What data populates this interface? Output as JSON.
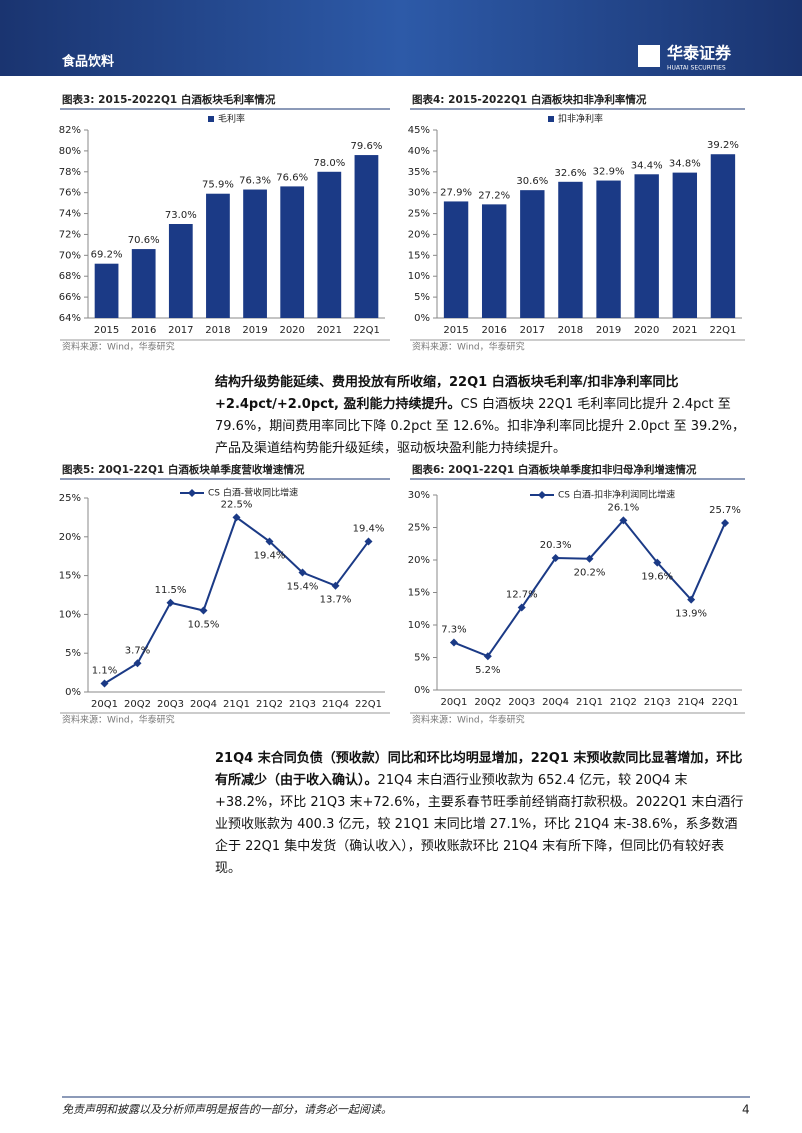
{
  "header": {
    "section": "食品饮料",
    "logo": "华泰证券",
    "logo_sub": "HUATAI SECURITIES"
  },
  "chart_data": [
    {
      "type": "bar",
      "title": "图表3:  2015-2022Q1 白酒板块毛利率情况",
      "categories": [
        "2015",
        "2016",
        "2017",
        "2018",
        "2019",
        "2020",
        "2021",
        "22Q1"
      ],
      "series": [
        {
          "name": "毛利率",
          "color": "#1b3a86",
          "values": [
            69.2,
            70.6,
            73.0,
            75.9,
            76.3,
            76.6,
            78.0,
            79.6
          ],
          "value_labels": [
            "69.2%",
            "70.6%",
            "73.0%",
            "75.9%",
            "76.3%",
            "76.6%",
            "78.0%",
            "79.6%"
          ]
        }
      ],
      "ylim": [
        64,
        82
      ],
      "yticks": [
        {
          "value": 64,
          "label": "64%"
        },
        {
          "value": 66,
          "label": "66%"
        },
        {
          "value": 68,
          "label": "68%"
        },
        {
          "value": 70,
          "label": "70%"
        },
        {
          "value": 72,
          "label": "72%"
        },
        {
          "value": 74,
          "label": "74%"
        },
        {
          "value": 76,
          "label": "76%"
        },
        {
          "value": 78,
          "label": "78%"
        },
        {
          "value": 80,
          "label": "80%"
        },
        {
          "value": 82,
          "label": "82%"
        }
      ],
      "source": "资料来源：Wind，华泰研究"
    },
    {
      "type": "bar",
      "title": "图表4:  2015-2022Q1 白酒板块扣非净利率情况",
      "categories": [
        "2015",
        "2016",
        "2017",
        "2018",
        "2019",
        "2020",
        "2021",
        "22Q1"
      ],
      "series": [
        {
          "name": "扣非净利率",
          "color": "#1b3a86",
          "values": [
            27.9,
            27.2,
            30.6,
            32.6,
            32.9,
            34.4,
            34.8,
            39.2
          ],
          "value_labels": [
            "27.9%",
            "27.2%",
            "30.6%",
            "32.6%",
            "32.9%",
            "34.4%",
            "34.8%",
            "39.2%"
          ]
        }
      ],
      "ylim": [
        0,
        45
      ],
      "yticks": [
        {
          "value": 0,
          "label": "0%"
        },
        {
          "value": 5,
          "label": "5%"
        },
        {
          "value": 10,
          "label": "10%"
        },
        {
          "value": 15,
          "label": "15%"
        },
        {
          "value": 20,
          "label": "20%"
        },
        {
          "value": 25,
          "label": "25%"
        },
        {
          "value": 30,
          "label": "30%"
        },
        {
          "value": 35,
          "label": "35%"
        },
        {
          "value": 40,
          "label": "40%"
        },
        {
          "value": 45,
          "label": "45%"
        }
      ],
      "source": "资料来源：Wind，华泰研究"
    },
    {
      "type": "line",
      "title": "图表5:  20Q1-22Q1 白酒板块单季度营收增速情况",
      "categories": [
        "20Q1",
        "20Q2",
        "20Q3",
        "20Q4",
        "21Q1",
        "21Q2",
        "21Q3",
        "21Q4",
        "22Q1"
      ],
      "series": [
        {
          "name": "CS 白酒-营收同比增速",
          "color": "#1b3a86",
          "values": [
            1.1,
            3.7,
            11.5,
            10.5,
            22.5,
            19.4,
            15.4,
            13.7,
            19.4
          ],
          "value_labels": [
            "1.1%",
            "3.7%",
            "11.5%",
            "10.5%",
            "22.5%",
            "19.4%",
            "15.4%",
            "13.7%",
            "19.4%"
          ]
        }
      ],
      "ylim": [
        0,
        25
      ],
      "yticks": [
        {
          "value": 0,
          "label": "0%"
        },
        {
          "value": 5,
          "label": "5%"
        },
        {
          "value": 10,
          "label": "10%"
        },
        {
          "value": 15,
          "label": "15%"
        },
        {
          "value": 20,
          "label": "20%"
        },
        {
          "value": 25,
          "label": "25%"
        }
      ],
      "source": "资料来源：Wind，华泰研究"
    },
    {
      "type": "line",
      "title": "图表6:  20Q1-22Q1 白酒板块单季度扣非归母净利增速情况",
      "categories": [
        "20Q1",
        "20Q2",
        "20Q3",
        "20Q4",
        "21Q1",
        "21Q2",
        "21Q3",
        "21Q4",
        "22Q1"
      ],
      "series": [
        {
          "name": "CS 白酒-扣非净利润同比增速",
          "color": "#1b3a86",
          "values": [
            7.3,
            5.2,
            12.7,
            20.3,
            20.2,
            26.1,
            19.6,
            13.9,
            25.7
          ],
          "value_labels": [
            "7.3%",
            "5.2%",
            "12.7%",
            "20.3%",
            "20.2%",
            "26.1%",
            "19.6%",
            "13.9%",
            "25.7%"
          ]
        }
      ],
      "ylim": [
        0,
        30
      ],
      "yticks": [
        {
          "value": 0,
          "label": "0%"
        },
        {
          "value": 5,
          "label": "5%"
        },
        {
          "value": 10,
          "label": "10%"
        },
        {
          "value": 15,
          "label": "15%"
        },
        {
          "value": 20,
          "label": "20%"
        },
        {
          "value": 25,
          "label": "25%"
        },
        {
          "value": 30,
          "label": "30%"
        }
      ],
      "source": "资料来源：Wind，华泰研究"
    }
  ],
  "paragraphs": [
    {
      "bold": "结构升级势能延续、费用投放有所收缩，22Q1 白酒板块毛利率/扣非净利率同比+2.4pct/+2.0pct, 盈利能力持续提升。",
      "text": "CS 白酒板块 22Q1 毛利率同比提升 2.4pct 至 79.6%，期间费用率同比下降 0.2pct 至 12.6%。扣非净利率同比提升 2.0pct 至 39.2%，产品及渠道结构势能升级延续，驱动板块盈利能力持续提升。"
    },
    {
      "bold": "21Q4 末合同负债（预收款）同比和环比均明显增加，22Q1 末预收款同比显著增加，环比有所减少（由于收入确认）。",
      "text": "21Q4 末白酒行业预收款为 652.4 亿元，较 20Q4 末+38.2%，环比 21Q3 末+72.6%，主要系春节旺季前经销商打款积极。2022Q1 末白酒行业预收账款为 400.3 亿元，较 21Q1 末同比增 27.1%，环比 21Q4 末-38.6%，系多数酒企于 22Q1 集中发货（确认收入），预收账款环比 21Q4 末有所下降，但同比仍有较好表现。"
    }
  ],
  "footer": {
    "disclaimer": "免责声明和披露以及分析师声明是报告的一部分，请务必一起阅读。",
    "page": "4"
  }
}
